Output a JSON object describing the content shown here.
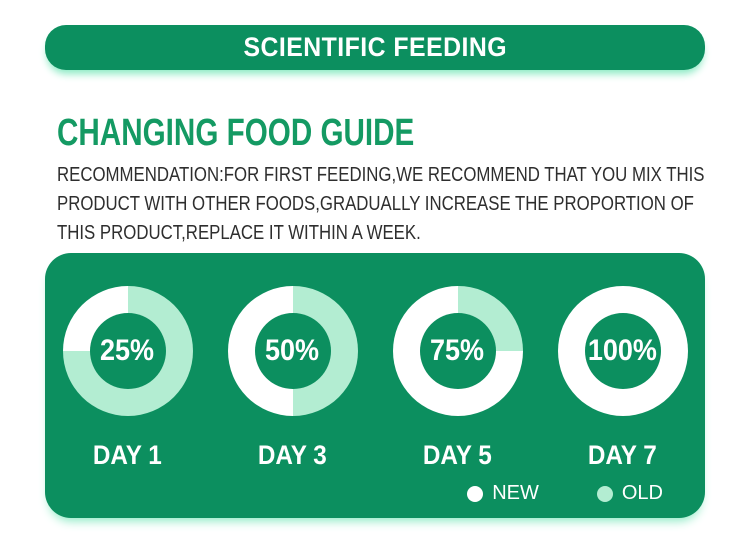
{
  "banner": {
    "title": "SCIENTIFIC FEEDING"
  },
  "heading": {
    "title": "CHANGING FOOD GUIDE"
  },
  "paragraph": {
    "lines": [
      "RECOMMENDATION:FOR FIRST FEEDING,WE RECOMMEND THAT YOU MIX THIS",
      "PRODUCT WITH OTHER FOODS,GRADUALLY INCREASE THE PROPORTION OF",
      "THIS PRODUCT,REPLACE IT WITHIN A WEEK."
    ]
  },
  "chart_data": {
    "type": "pie",
    "variant": "donut-ring-grid",
    "items": [
      {
        "day_label": "DAY 1",
        "percent_label": "25%",
        "new_pct": 25,
        "old_pct": 75
      },
      {
        "day_label": "DAY 3",
        "percent_label": "50%",
        "new_pct": 50,
        "old_pct": 50
      },
      {
        "day_label": "DAY 5",
        "percent_label": "75%",
        "new_pct": 75,
        "old_pct": 25
      },
      {
        "day_label": "DAY 7",
        "percent_label": "100%",
        "new_pct": 100,
        "old_pct": 0
      }
    ],
    "legend": [
      {
        "name": "NEW",
        "color": "#ffffff"
      },
      {
        "name": "OLD",
        "color": "#b3edd2"
      }
    ],
    "legend_position": "bottom-right"
  },
  "colors": {
    "green": "#0c8f5f",
    "heading_green": "#149a63",
    "mint": "#b3edd2",
    "glow": "#8ceac4",
    "text_dark": "#2e2e2e",
    "white": "#ffffff"
  }
}
